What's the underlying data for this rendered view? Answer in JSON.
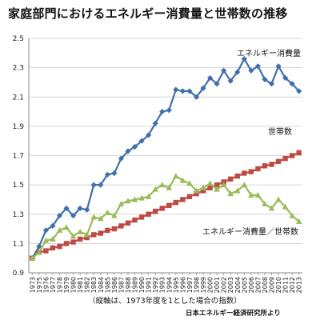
{
  "chart_data": {
    "type": "line",
    "title": "家庭部門におけるエネルギー消費量と世帯数の推移",
    "footnote": "（縦軸は、1973年度を1とした場合の指数）",
    "source": "日本エネルギー経済研究所より",
    "ylim": [
      0.9,
      2.5
    ],
    "yticks": [
      "0.9",
      "1.1",
      "1.3",
      "1.5",
      "1.7",
      "1.9",
      "2.1",
      "2.3",
      "2.5"
    ],
    "x": [
      "1973",
      "1975",
      "1976",
      "1977",
      "1978",
      "1979",
      "1980",
      "1981",
      "1982",
      "1983",
      "1984",
      "1985",
      "1986",
      "1987",
      "1988",
      "1989",
      "1990",
      "1991",
      "1992",
      "1993",
      "1994",
      "1995",
      "1996",
      "1997",
      "1998",
      "1999",
      "2000",
      "2001",
      "2002",
      "2003",
      "2004",
      "2005",
      "2006",
      "2007",
      "2008",
      "2009",
      "2010",
      "2011",
      "2012",
      "2013"
    ],
    "grid": "horizontal",
    "series": [
      {
        "name": "エネルギー消費量",
        "color": "#3f6fad",
        "marker": "diamond",
        "values": [
          1.0,
          1.08,
          1.19,
          1.22,
          1.29,
          1.34,
          1.29,
          1.34,
          1.33,
          1.5,
          1.5,
          1.57,
          1.58,
          1.68,
          1.73,
          1.76,
          1.8,
          1.84,
          1.92,
          2.0,
          2.01,
          2.15,
          2.14,
          2.14,
          2.1,
          2.16,
          2.23,
          2.19,
          2.28,
          2.21,
          2.27,
          2.36,
          2.28,
          2.31,
          2.22,
          2.19,
          2.31,
          2.23,
          2.19,
          2.14
        ]
      },
      {
        "name": "世帯数",
        "color": "#bf4a44",
        "marker": "square",
        "values": [
          1.0,
          1.04,
          1.05,
          1.07,
          1.08,
          1.1,
          1.11,
          1.13,
          1.14,
          1.16,
          1.17,
          1.19,
          1.2,
          1.22,
          1.24,
          1.26,
          1.28,
          1.3,
          1.32,
          1.34,
          1.36,
          1.38,
          1.4,
          1.42,
          1.44,
          1.46,
          1.48,
          1.5,
          1.52,
          1.54,
          1.56,
          1.58,
          1.59,
          1.61,
          1.63,
          1.64,
          1.66,
          1.68,
          1.7,
          1.72
        ]
      },
      {
        "name": "エネルギー消費量／世帯数",
        "color": "#9abb59",
        "marker": "triangle",
        "values": [
          1.0,
          1.04,
          1.12,
          1.13,
          1.19,
          1.21,
          1.15,
          1.18,
          1.16,
          1.28,
          1.27,
          1.31,
          1.29,
          1.37,
          1.39,
          1.4,
          1.41,
          1.42,
          1.47,
          1.5,
          1.48,
          1.56,
          1.53,
          1.51,
          1.46,
          1.48,
          1.51,
          1.47,
          1.5,
          1.44,
          1.46,
          1.5,
          1.43,
          1.43,
          1.37,
          1.34,
          1.4,
          1.35,
          1.29,
          1.25
        ]
      }
    ]
  }
}
